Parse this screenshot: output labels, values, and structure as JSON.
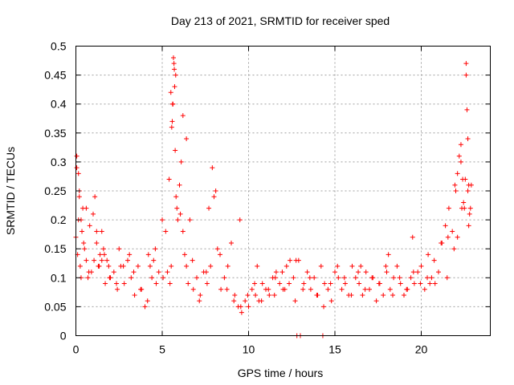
{
  "chart_data": {
    "type": "scatter",
    "title": "Day 213 of 2021, SRMTID for receiver sped",
    "xlabel": "GPS time / hours",
    "ylabel": "SRMTID / TECUs",
    "xlim": [
      0,
      24
    ],
    "ylim": [
      0,
      0.5
    ],
    "xticks": [
      0,
      5,
      10,
      15,
      20
    ],
    "xtick_labels": [
      "0",
      "5",
      "10",
      "15",
      "20"
    ],
    "yticks": [
      0,
      0.05,
      0.1,
      0.15,
      0.2,
      0.25,
      0.3,
      0.35,
      0.4,
      0.45,
      0.5
    ],
    "ytick_labels": [
      "0",
      "0.05",
      "0.1",
      "0.15",
      "0.2",
      "0.25",
      "0.3",
      "0.35",
      "0.4",
      "0.45",
      "0.5"
    ],
    "grid": true,
    "marker": "plus",
    "color": "#ff0000",
    "series": [
      {
        "name": "SRMTID",
        "x": [
          0.0,
          0.05,
          0.1,
          0.15,
          0.2,
          0.25,
          0.3,
          0.35,
          0.4,
          0.5,
          0.6,
          0.7,
          0.8,
          0.9,
          1.0,
          1.1,
          1.2,
          1.3,
          1.4,
          1.5,
          1.6,
          1.7,
          1.8,
          1.9,
          2.0,
          2.2,
          2.4,
          2.6,
          2.8,
          3.0,
          3.2,
          3.4,
          3.6,
          3.8,
          4.0,
          4.2,
          4.4,
          4.6,
          4.8,
          5.0,
          5.2,
          5.4,
          5.5,
          5.55,
          5.6,
          5.65,
          5.7,
          5.75,
          5.8,
          5.9,
          6.0,
          6.1,
          6.2,
          6.3,
          6.4,
          6.5,
          6.6,
          6.8,
          7.0,
          7.2,
          7.4,
          7.6,
          7.8,
          8.0,
          8.2,
          8.4,
          8.6,
          8.8,
          9.0,
          9.2,
          9.4,
          9.6,
          9.8,
          10.0,
          10.2,
          10.4,
          10.6,
          10.8,
          11.0,
          11.2,
          11.4,
          11.6,
          11.8,
          12.0,
          12.2,
          12.4,
          12.6,
          12.8,
          13.0,
          13.2,
          13.4,
          13.6,
          13.8,
          14.0,
          14.2,
          14.4,
          14.6,
          14.8,
          15.0,
          15.2,
          15.4,
          15.6,
          15.8,
          16.0,
          16.2,
          16.4,
          16.6,
          16.8,
          17.0,
          17.2,
          17.4,
          17.6,
          17.8,
          18.0,
          18.2,
          18.4,
          18.6,
          18.8,
          19.0,
          19.2,
          19.4,
          19.6,
          19.8,
          20.0,
          20.2,
          20.4,
          20.6,
          20.8,
          21.0,
          21.2,
          21.4,
          21.6,
          21.8,
          22.0,
          22.1,
          22.2,
          22.3,
          22.4,
          22.5,
          22.6,
          22.7,
          22.8,
          22.9,
          0.05,
          0.2,
          0.3,
          0.6,
          1.2,
          1.5,
          2.5,
          3.1,
          4.3,
          4.5,
          5.3,
          5.45,
          5.52,
          5.58,
          5.62,
          5.68,
          5.72,
          5.78,
          6.2,
          6.4,
          7.7,
          7.9,
          8.1,
          9.5,
          10.5,
          11.5,
          12.1,
          12.7,
          12.9,
          14.3,
          16.5,
          18.1,
          19.5,
          20.5,
          21.5,
          21.9,
          22.1,
          22.3,
          22.45,
          22.55,
          22.6,
          22.65,
          22.7,
          22.75,
          22.85,
          0.15,
          0.45,
          0.75,
          1.05,
          1.35,
          1.65,
          1.95,
          2.35,
          2.75,
          3.35,
          3.75,
          4.15,
          4.65,
          5.05,
          5.85,
          6.05,
          6.75,
          7.15,
          7.55,
          8.35,
          8.75,
          9.15,
          9.55,
          9.95,
          10.35,
          10.75,
          11.15,
          11.55,
          11.95,
          12.35,
          12.75,
          13.15,
          13.55,
          13.95,
          14.35,
          14.75,
          15.15,
          15.55,
          15.95,
          16.35,
          16.75,
          17.15,
          17.55,
          17.95,
          18.35,
          18.75,
          19.15,
          19.55,
          19.95,
          20.35,
          20.75,
          21.15,
          21.55,
          21.95,
          22.35,
          22.75
        ],
        "y": [
          0.17,
          0.31,
          0.14,
          0.28,
          0.25,
          0.12,
          0.2,
          0.18,
          0.22,
          0.15,
          0.13,
          0.1,
          0.19,
          0.11,
          0.21,
          0.24,
          0.16,
          0.12,
          0.14,
          0.18,
          0.15,
          0.09,
          0.13,
          0.12,
          0.1,
          0.11,
          0.08,
          0.12,
          0.09,
          0.13,
          0.1,
          0.07,
          0.12,
          0.08,
          0.05,
          0.14,
          0.1,
          0.15,
          0.11,
          0.2,
          0.18,
          0.27,
          0.42,
          0.36,
          0.4,
          0.48,
          0.46,
          0.32,
          0.24,
          0.2,
          0.26,
          0.3,
          0.18,
          0.14,
          0.12,
          0.09,
          0.2,
          0.08,
          0.1,
          0.07,
          0.11,
          0.09,
          0.12,
          0.24,
          0.15,
          0.08,
          0.1,
          0.12,
          0.16,
          0.07,
          0.05,
          0.04,
          0.06,
          0.05,
          0.08,
          0.07,
          0.06,
          0.09,
          0.08,
          0.07,
          0.1,
          0.11,
          0.09,
          0.08,
          0.12,
          0.13,
          0.1,
          0.0,
          0.0,
          0.09,
          0.11,
          0.08,
          0.1,
          0.07,
          0.12,
          0.09,
          0.08,
          0.06,
          0.11,
          0.1,
          0.08,
          0.09,
          0.07,
          0.12,
          0.1,
          0.09,
          0.07,
          0.11,
          0.08,
          0.1,
          0.06,
          0.09,
          0.07,
          0.11,
          0.08,
          0.1,
          0.12,
          0.09,
          0.07,
          0.08,
          0.1,
          0.09,
          0.11,
          0.12,
          0.08,
          0.14,
          0.1,
          0.09,
          0.11,
          0.16,
          0.19,
          0.22,
          0.18,
          0.25,
          0.28,
          0.31,
          0.33,
          0.27,
          0.22,
          0.45,
          0.25,
          0.21,
          0.26,
          0.29,
          0.24,
          0.1,
          0.22,
          0.18,
          0.13,
          0.15,
          0.14,
          0.12,
          0.13,
          0.11,
          0.09,
          0.12,
          0.37,
          0.4,
          0.47,
          0.43,
          0.45,
          0.38,
          0.34,
          0.22,
          0.29,
          0.25,
          0.2,
          0.12,
          0.07,
          0.08,
          0.06,
          0.13,
          0.0,
          0.12,
          0.14,
          0.17,
          0.09,
          0.1,
          0.15,
          0.17,
          0.3,
          0.23,
          0.27,
          0.47,
          0.39,
          0.34,
          0.26,
          0.22,
          0.2,
          0.16,
          0.11,
          0.13,
          0.12,
          0.14,
          0.1,
          0.09,
          0.12,
          0.11,
          0.08,
          0.06,
          0.09,
          0.1,
          0.22,
          0.21,
          0.13,
          0.06,
          0.11,
          0.14,
          0.08,
          0.06,
          0.05,
          0.07,
          0.09,
          0.06,
          0.08,
          0.1,
          0.11,
          0.09,
          0.13,
          0.08,
          0.1,
          0.07,
          0.05,
          0.09,
          0.12,
          0.1,
          0.07,
          0.11,
          0.08,
          0.1,
          0.09,
          0.12,
          0.07,
          0.1,
          0.08,
          0.11,
          0.09,
          0.1,
          0.13,
          0.16,
          0.17,
          0.26,
          0.22,
          0.19
        ]
      }
    ]
  }
}
